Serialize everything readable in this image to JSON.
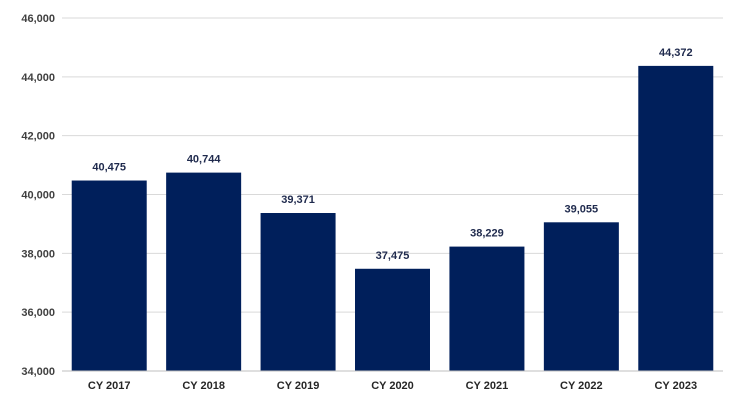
{
  "chart_data": {
    "type": "bar",
    "title": "",
    "xlabel": "",
    "ylabel": "",
    "categories": [
      "CY 2017",
      "CY 2018",
      "CY 2019",
      "CY 2020",
      "CY 2021",
      "CY 2022",
      "CY 2023"
    ],
    "values": [
      40475,
      40744,
      39371,
      37475,
      38229,
      39055,
      44372
    ],
    "value_labels": [
      "40,475",
      "40,744",
      "39,371",
      "37,475",
      "38,229",
      "39,055",
      "44,372"
    ],
    "ylim": [
      34000,
      46000
    ],
    "yticks": [
      34000,
      36000,
      38000,
      40000,
      42000,
      44000,
      46000
    ],
    "ytick_labels": [
      "34,000",
      "36,000",
      "38,000",
      "40,000",
      "42,000",
      "44,000",
      "46,000"
    ],
    "grid": true,
    "legend": "none",
    "bar_color": "#001f5b",
    "gridline_color": "#d9d9d9"
  }
}
